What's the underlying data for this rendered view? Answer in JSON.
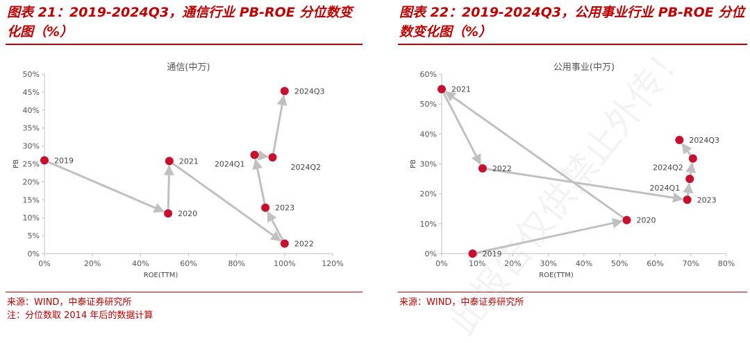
{
  "left": {
    "figure_title": "图表 21：2019-2024Q3，通信行业 PB-ROE 分位数变化图（%）",
    "source": "来源：WIND，中泰证券研究所",
    "note": "注：分位数取 2014 年后的数据计算"
  },
  "right": {
    "figure_title": "图表 22：2019-2024Q3，公用事业行业 PB-ROE 分位数变化图（%）",
    "source": "来源：WIND，中泰证券研究所",
    "watermark": "此报告仅供禁止外传！"
  },
  "colors": {
    "accent": "#c00000",
    "marker": "#c8102e",
    "arrow": "#c0c0c0",
    "axis": "#bfbfbf"
  },
  "chart_data": [
    {
      "type": "scatter",
      "title": "通信(中万)",
      "xlabel": "ROE(TTM)",
      "ylabel": "PB",
      "xlim": [
        0,
        1.2
      ],
      "ylim": [
        0,
        0.5
      ],
      "x_ticks": [
        0,
        0.2,
        0.4,
        0.6,
        0.8,
        1.0,
        1.2
      ],
      "x_tick_labels": [
        "0%",
        "20%",
        "40%",
        "60%",
        "80%",
        "100%",
        "120%"
      ],
      "y_ticks": [
        0,
        0.05,
        0.1,
        0.15,
        0.2,
        0.25,
        0.3,
        0.35,
        0.4,
        0.45,
        0.5
      ],
      "y_tick_labels": [
        "0%",
        "5%",
        "10%",
        "15%",
        "20%",
        "25%",
        "30%",
        "35%",
        "40%",
        "45%",
        "50%"
      ],
      "series": [
        {
          "points": [
            {
              "label": "2019",
              "x": 0.0,
              "y": 0.26,
              "label_pos": "right"
            },
            {
              "label": "2020",
              "x": 0.515,
              "y": 0.112,
              "label_pos": "right"
            },
            {
              "label": "2021",
              "x": 0.52,
              "y": 0.258,
              "label_pos": "right"
            },
            {
              "label": "2022",
              "x": 1.0,
              "y": 0.028,
              "label_pos": "right"
            },
            {
              "label": "2023",
              "x": 0.92,
              "y": 0.128,
              "label_pos": "right"
            },
            {
              "label": "2024Q1",
              "x": 0.875,
              "y": 0.275,
              "label_pos": "left-below"
            },
            {
              "label": "2024Q2",
              "x": 0.95,
              "y": 0.268,
              "label_pos": "right-below"
            },
            {
              "label": "2024Q3",
              "x": 1.0,
              "y": 0.453,
              "label_pos": "right"
            }
          ]
        }
      ],
      "grid": false,
      "legend": "none"
    },
    {
      "type": "scatter",
      "title": "公用事业(中万)",
      "xlabel": "ROE(TTM)",
      "ylabel": "PB",
      "xlim": [
        0,
        0.8
      ],
      "ylim": [
        0,
        0.6
      ],
      "x_ticks": [
        0,
        0.1,
        0.2,
        0.3,
        0.4,
        0.5,
        0.6,
        0.7,
        0.8
      ],
      "x_tick_labels": [
        "0%",
        "10%",
        "20%",
        "30%",
        "40%",
        "50%",
        "60%",
        "70%",
        "80%"
      ],
      "y_ticks": [
        0,
        0.1,
        0.2,
        0.3,
        0.4,
        0.5,
        0.6
      ],
      "y_tick_labels": [
        "0%",
        "10%",
        "20%",
        "30%",
        "40%",
        "50%",
        "60%"
      ],
      "series": [
        {
          "points": [
            {
              "label": "2019",
              "x": 0.087,
              "y": 0.0,
              "label_pos": "right"
            },
            {
              "label": "2020",
              "x": 0.52,
              "y": 0.112,
              "label_pos": "right"
            },
            {
              "label": "2021",
              "x": 0.0,
              "y": 0.55,
              "label_pos": "right"
            },
            {
              "label": "2022",
              "x": 0.115,
              "y": 0.285,
              "label_pos": "right"
            },
            {
              "label": "2023",
              "x": 0.69,
              "y": 0.18,
              "label_pos": "right"
            },
            {
              "label": "2024Q1",
              "x": 0.697,
              "y": 0.25,
              "label_pos": "left-below"
            },
            {
              "label": "2024Q2",
              "x": 0.706,
              "y": 0.318,
              "label_pos": "left-below"
            },
            {
              "label": "2024Q3",
              "x": 0.668,
              "y": 0.38,
              "label_pos": "right"
            }
          ]
        }
      ],
      "grid": false,
      "legend": "none"
    }
  ]
}
